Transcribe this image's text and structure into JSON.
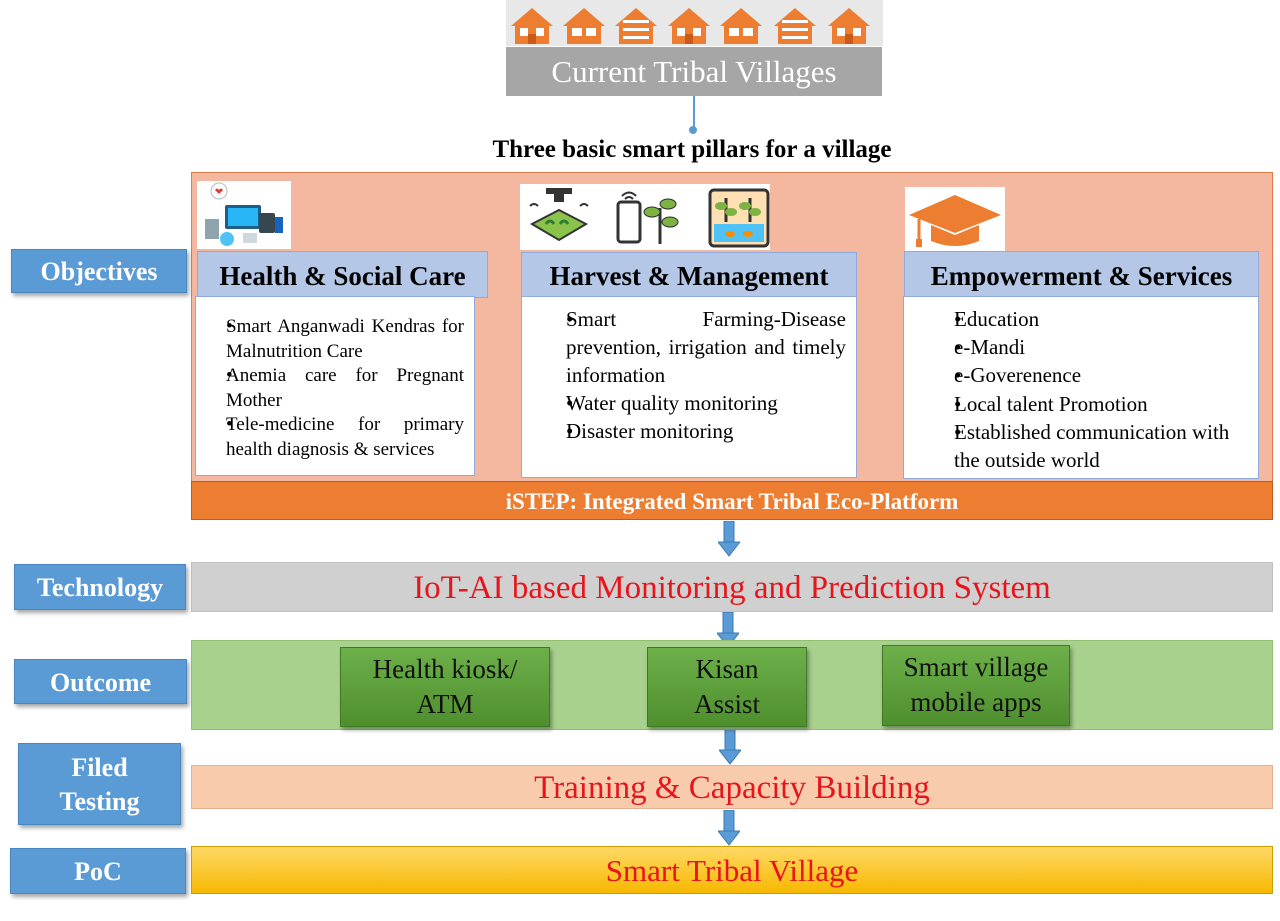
{
  "header": {
    "current_villages": "Current Tribal Villages",
    "pillars_title": "Three basic smart pillars for a village"
  },
  "pillars": [
    {
      "title": "Health & Social Care",
      "items": [
        "Smart Anganwadi Kendras for Malnutrition Care",
        "Anemia care for Pregnant Mother",
        "Tele-medicine for primary health diagnosis & services"
      ]
    },
    {
      "title": "Harvest & Management",
      "items": [
        "Smart Farming-Disease prevention, irrigation and timely information",
        "Water quality monitoring",
        "Disaster monitoring"
      ]
    },
    {
      "title": "Empowerment & Services",
      "items": [
        "Education",
        "e-Mandi",
        "e-Goverenence",
        "Local talent Promotion",
        "Established communication with the outside world"
      ]
    }
  ],
  "platform": "iSTEP: Integrated Smart Tribal Eco-Platform",
  "labels": {
    "objectives": "Objectives",
    "technology": "Technology",
    "outcome": "Outcome",
    "filed_line1": "Filed",
    "filed_line2": "Testing",
    "poc": "PoC"
  },
  "technology": "IoT-AI based Monitoring and Prediction System",
  "outcomes": [
    {
      "line1": "Health kiosk/",
      "line2": "ATM"
    },
    {
      "line1": "Kisan",
      "line2": "Assist"
    },
    {
      "line1": "Smart village",
      "line2": "mobile apps"
    }
  ],
  "training": "Training & Capacity Building",
  "poc_result": "Smart Tribal Village",
  "colors": {
    "house": "#ed7d31",
    "label_blue": "#5b9bd5",
    "red_text": "#e8141c",
    "panel": "#f4b79f",
    "platform_bar": "#ed7d31"
  },
  "icons": [
    "house-icon",
    "health-devices-icon",
    "drone-farm-icon",
    "smartphone-plant-icon",
    "aquaponics-icon",
    "graduation-cap-icon",
    "down-arrow-icon"
  ]
}
